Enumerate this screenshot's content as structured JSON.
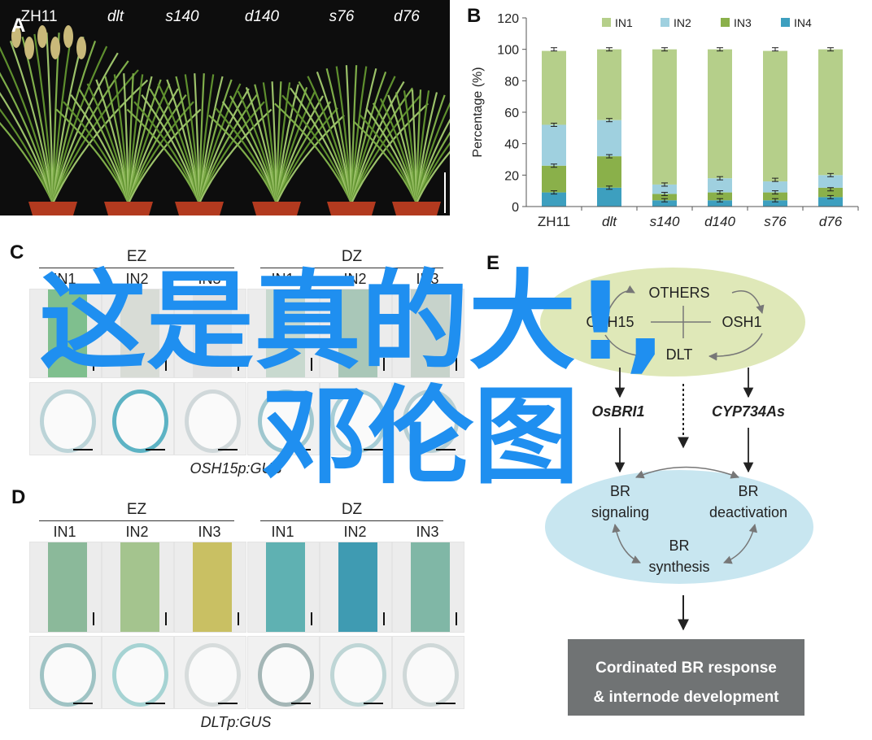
{
  "panel_letters": {
    "a": "A",
    "b": "B",
    "c": "C",
    "d": "D",
    "e": "E"
  },
  "panel_a": {
    "genotypes": [
      {
        "label": "ZH11",
        "italic": false
      },
      {
        "label": "dlt",
        "italic": true
      },
      {
        "label": "s140",
        "italic": true
      },
      {
        "label": "d140",
        "italic": true
      },
      {
        "label": "s76",
        "italic": true
      },
      {
        "label": "d76",
        "italic": true
      }
    ]
  },
  "chart_data": {
    "type": "bar",
    "stacked": true,
    "categories": [
      "ZH11",
      "dlt",
      "s140",
      "d140",
      "s76",
      "d76"
    ],
    "series": [
      {
        "name": "IN1",
        "color": "#b5cf8a",
        "values": [
          47,
          45,
          86,
          82,
          83,
          80
        ]
      },
      {
        "name": "IN2",
        "color": "#9fd0df",
        "values": [
          26,
          23,
          6,
          9,
          7,
          8
        ]
      },
      {
        "name": "IN3",
        "color": "#8ab04a",
        "values": [
          17,
          20,
          4,
          5,
          5,
          6
        ]
      },
      {
        "name": "IN4",
        "color": "#3d9fbf",
        "values": [
          9,
          12,
          4,
          4,
          4,
          6
        ]
      }
    ],
    "cumulative_error_points": [
      [
        9,
        26,
        52,
        100
      ],
      [
        12,
        32,
        55,
        100
      ],
      [
        4,
        8,
        14,
        100
      ],
      [
        4,
        9,
        18,
        100
      ],
      [
        4,
        9,
        17,
        100
      ],
      [
        6,
        11,
        20,
        100
      ]
    ],
    "ylabel": "Percentage (%)",
    "ylim": [
      0,
      120
    ],
    "yticks": [
      "0",
      "20",
      "40",
      "60",
      "80",
      "100",
      "120"
    ],
    "legend_position": "top"
  },
  "panel_c": {
    "zones": [
      "EZ",
      "DZ"
    ],
    "internodes": [
      "IN1",
      "IN2",
      "IN3",
      "IN1",
      "IN2",
      "IN3"
    ],
    "caption": "OSH15p:GUS"
  },
  "panel_d": {
    "zones": [
      "EZ",
      "DZ"
    ],
    "internodes": [
      "IN1",
      "IN2",
      "IN3",
      "IN1",
      "IN2",
      "IN3"
    ],
    "caption": "DLTp:GUS"
  },
  "panel_e": {
    "others": "OTHERS",
    "osh15": "OSH15",
    "osh1": "OSH1",
    "dlt": "DLT",
    "osbri1": "OsBRI1",
    "cyp734as": "CYP734As",
    "br_signaling_1": "BR",
    "br_signaling_2": "signaling",
    "br_deactivation_1": "BR",
    "br_deactivation_2": "deactivation",
    "br_synthesis_1": "BR",
    "br_synthesis_2": "synthesis",
    "response_1": "Cordinated BR response",
    "response_2": "& internode development",
    "colors": {
      "green_ellipse": "#dfe8b8",
      "blue_ellipse": "#c8e6f0",
      "response_box": "#707374"
    }
  },
  "watermark": {
    "line1": "这是真的大!,",
    "line2": "邓伦图"
  }
}
